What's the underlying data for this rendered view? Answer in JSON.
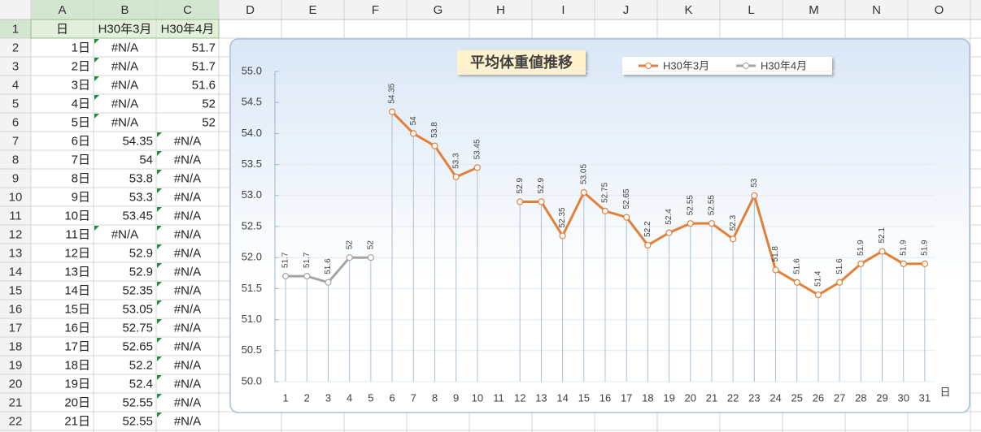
{
  "sheet": {
    "columns": [
      "A",
      "B",
      "C",
      "D",
      "E",
      "F",
      "G",
      "H",
      "I",
      "J",
      "K",
      "L",
      "M",
      "N",
      "O"
    ],
    "row_numbers": [
      1,
      2,
      3,
      4,
      5,
      6,
      7,
      8,
      9,
      10,
      11,
      12,
      13,
      14,
      15,
      16,
      17,
      18,
      19,
      20,
      21,
      22
    ],
    "rows": [
      [
        "日",
        "H30年3月",
        "H30年4月"
      ],
      [
        "1日",
        "#N/A",
        51.7
      ],
      [
        "2日",
        "#N/A",
        51.7
      ],
      [
        "3日",
        "#N/A",
        51.6
      ],
      [
        "4日",
        "#N/A",
        52
      ],
      [
        "5日",
        "#N/A",
        52
      ],
      [
        "6日",
        54.35,
        "#N/A"
      ],
      [
        "7日",
        54,
        "#N/A"
      ],
      [
        "8日",
        53.8,
        "#N/A"
      ],
      [
        "9日",
        53.3,
        "#N/A"
      ],
      [
        "10日",
        53.45,
        "#N/A"
      ],
      [
        "11日",
        "#N/A",
        "#N/A"
      ],
      [
        "12日",
        52.9,
        "#N/A"
      ],
      [
        "13日",
        52.9,
        "#N/A"
      ],
      [
        "14日",
        52.35,
        "#N/A"
      ],
      [
        "15日",
        53.05,
        "#N/A"
      ],
      [
        "16日",
        52.75,
        "#N/A"
      ],
      [
        "17日",
        52.65,
        "#N/A"
      ],
      [
        "18日",
        52.2,
        "#N/A"
      ],
      [
        "19日",
        52.4,
        "#N/A"
      ],
      [
        "20日",
        52.55,
        "#N/A"
      ],
      [
        "21日",
        52.55,
        "#N/A"
      ]
    ]
  },
  "chart_data": {
    "type": "line",
    "title": "平均体重値推移",
    "xlabel": "日",
    "categories": [
      "1",
      "2",
      "3",
      "4",
      "5",
      "6",
      "7",
      "8",
      "9",
      "10",
      "11",
      "12",
      "13",
      "14",
      "15",
      "16",
      "17",
      "18",
      "19",
      "20",
      "21",
      "22",
      "23",
      "24",
      "25",
      "26",
      "27",
      "28",
      "29",
      "30",
      "31"
    ],
    "series": [
      {
        "name": "H30年3月",
        "color": "#e0803a",
        "values": [
          null,
          null,
          null,
          null,
          null,
          54.35,
          54,
          53.8,
          53.3,
          53.45,
          null,
          52.9,
          52.9,
          52.35,
          53.05,
          52.75,
          52.65,
          52.2,
          52.4,
          52.55,
          52.55,
          52.3,
          53,
          51.8,
          51.6,
          51.4,
          51.6,
          51.9,
          52.1,
          51.9,
          51.9
        ]
      },
      {
        "name": "H30年4月",
        "color": "#a5a5a5",
        "values": [
          51.7,
          51.7,
          51.6,
          52,
          52,
          null,
          null,
          null,
          null,
          null,
          null,
          null,
          null,
          null,
          null,
          null,
          null,
          null,
          null,
          null,
          null,
          null,
          null,
          null,
          null,
          null,
          null,
          null,
          null,
          null,
          null
        ]
      }
    ],
    "ylim": [
      50,
      55
    ],
    "yticks": [
      {
        "value": 50,
        "label": "50.0"
      },
      50.5,
      {
        "value": 51,
        "label": "51.0"
      },
      51.5,
      {
        "value": 52,
        "label": "52.0"
      },
      52.5,
      {
        "value": 53,
        "label": "53.0"
      },
      53.5,
      {
        "value": 54,
        "label": "54.0"
      },
      54.5,
      {
        "value": 55,
        "label": "55.0"
      }
    ],
    "grid": true,
    "data_labels": true,
    "drop_lines": true,
    "legend": "top"
  }
}
